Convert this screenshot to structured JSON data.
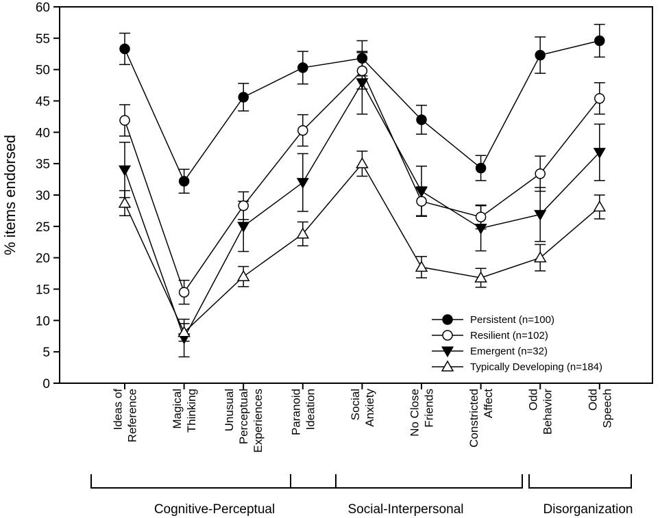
{
  "chart_data": {
    "type": "line",
    "ylabel": "% items endorsed",
    "ylim": [
      0,
      60
    ],
    "yticks": [
      0,
      5,
      10,
      15,
      20,
      25,
      30,
      35,
      40,
      45,
      50,
      55,
      60
    ],
    "categories": [
      [
        "Ideas of",
        "Reference"
      ],
      [
        "Magical",
        "Thinking"
      ],
      [
        "Unusual",
        "Perceptual",
        "Experiences"
      ],
      [
        "Paranoid",
        "Ideation"
      ],
      [
        "Social",
        "Anxiety"
      ],
      [
        "No Close",
        "Friends"
      ],
      [
        "Constricted",
        "Affect"
      ],
      [
        "Odd",
        "Behavior"
      ],
      [
        "Odd",
        "Speech"
      ]
    ],
    "series": [
      {
        "name": "Persistent (n=100)",
        "marker": "filled-circle",
        "values": [
          53.3,
          32.2,
          45.6,
          50.3,
          51.8,
          42.0,
          34.3,
          52.3,
          54.6
        ],
        "errors": [
          2.5,
          1.9,
          2.2,
          2.6,
          2.8,
          2.3,
          2.0,
          2.9,
          2.6
        ]
      },
      {
        "name": "Resilient (n=102)",
        "marker": "open-circle",
        "values": [
          41.9,
          14.5,
          28.3,
          40.3,
          49.8,
          29.0,
          26.5,
          33.4,
          45.4
        ],
        "errors": [
          2.5,
          1.9,
          2.2,
          2.5,
          2.9,
          2.3,
          1.9,
          2.8,
          2.5
        ]
      },
      {
        "name": "Emergent (n=32)",
        "marker": "filled-triangle-down",
        "values": [
          34.0,
          7.2,
          25.0,
          32.0,
          47.9,
          30.6,
          24.7,
          26.9,
          36.8
        ],
        "errors": [
          4.4,
          3.0,
          4.0,
          4.6,
          5.0,
          4.0,
          3.6,
          4.3,
          4.5
        ]
      },
      {
        "name": "Typically Developing (n=184)",
        "marker": "open-triangle-up",
        "values": [
          28.7,
          8.1,
          17.0,
          23.8,
          35.0,
          18.5,
          16.8,
          20.0,
          28.1
        ],
        "errors": [
          2.0,
          1.4,
          1.6,
          1.9,
          2.0,
          1.7,
          1.5,
          2.1,
          1.9
        ]
      }
    ],
    "legend_position": "lower-right",
    "groups": [
      {
        "label": "Cognitive-Perceptual",
        "span": [
          0,
          3
        ]
      },
      {
        "label": "Social-Interpersonal",
        "span": [
          3,
          6
        ]
      },
      {
        "label": "Disorganization",
        "span": [
          7,
          8
        ]
      }
    ],
    "colors": {
      "line": "#000000",
      "background": "#ffffff"
    }
  }
}
